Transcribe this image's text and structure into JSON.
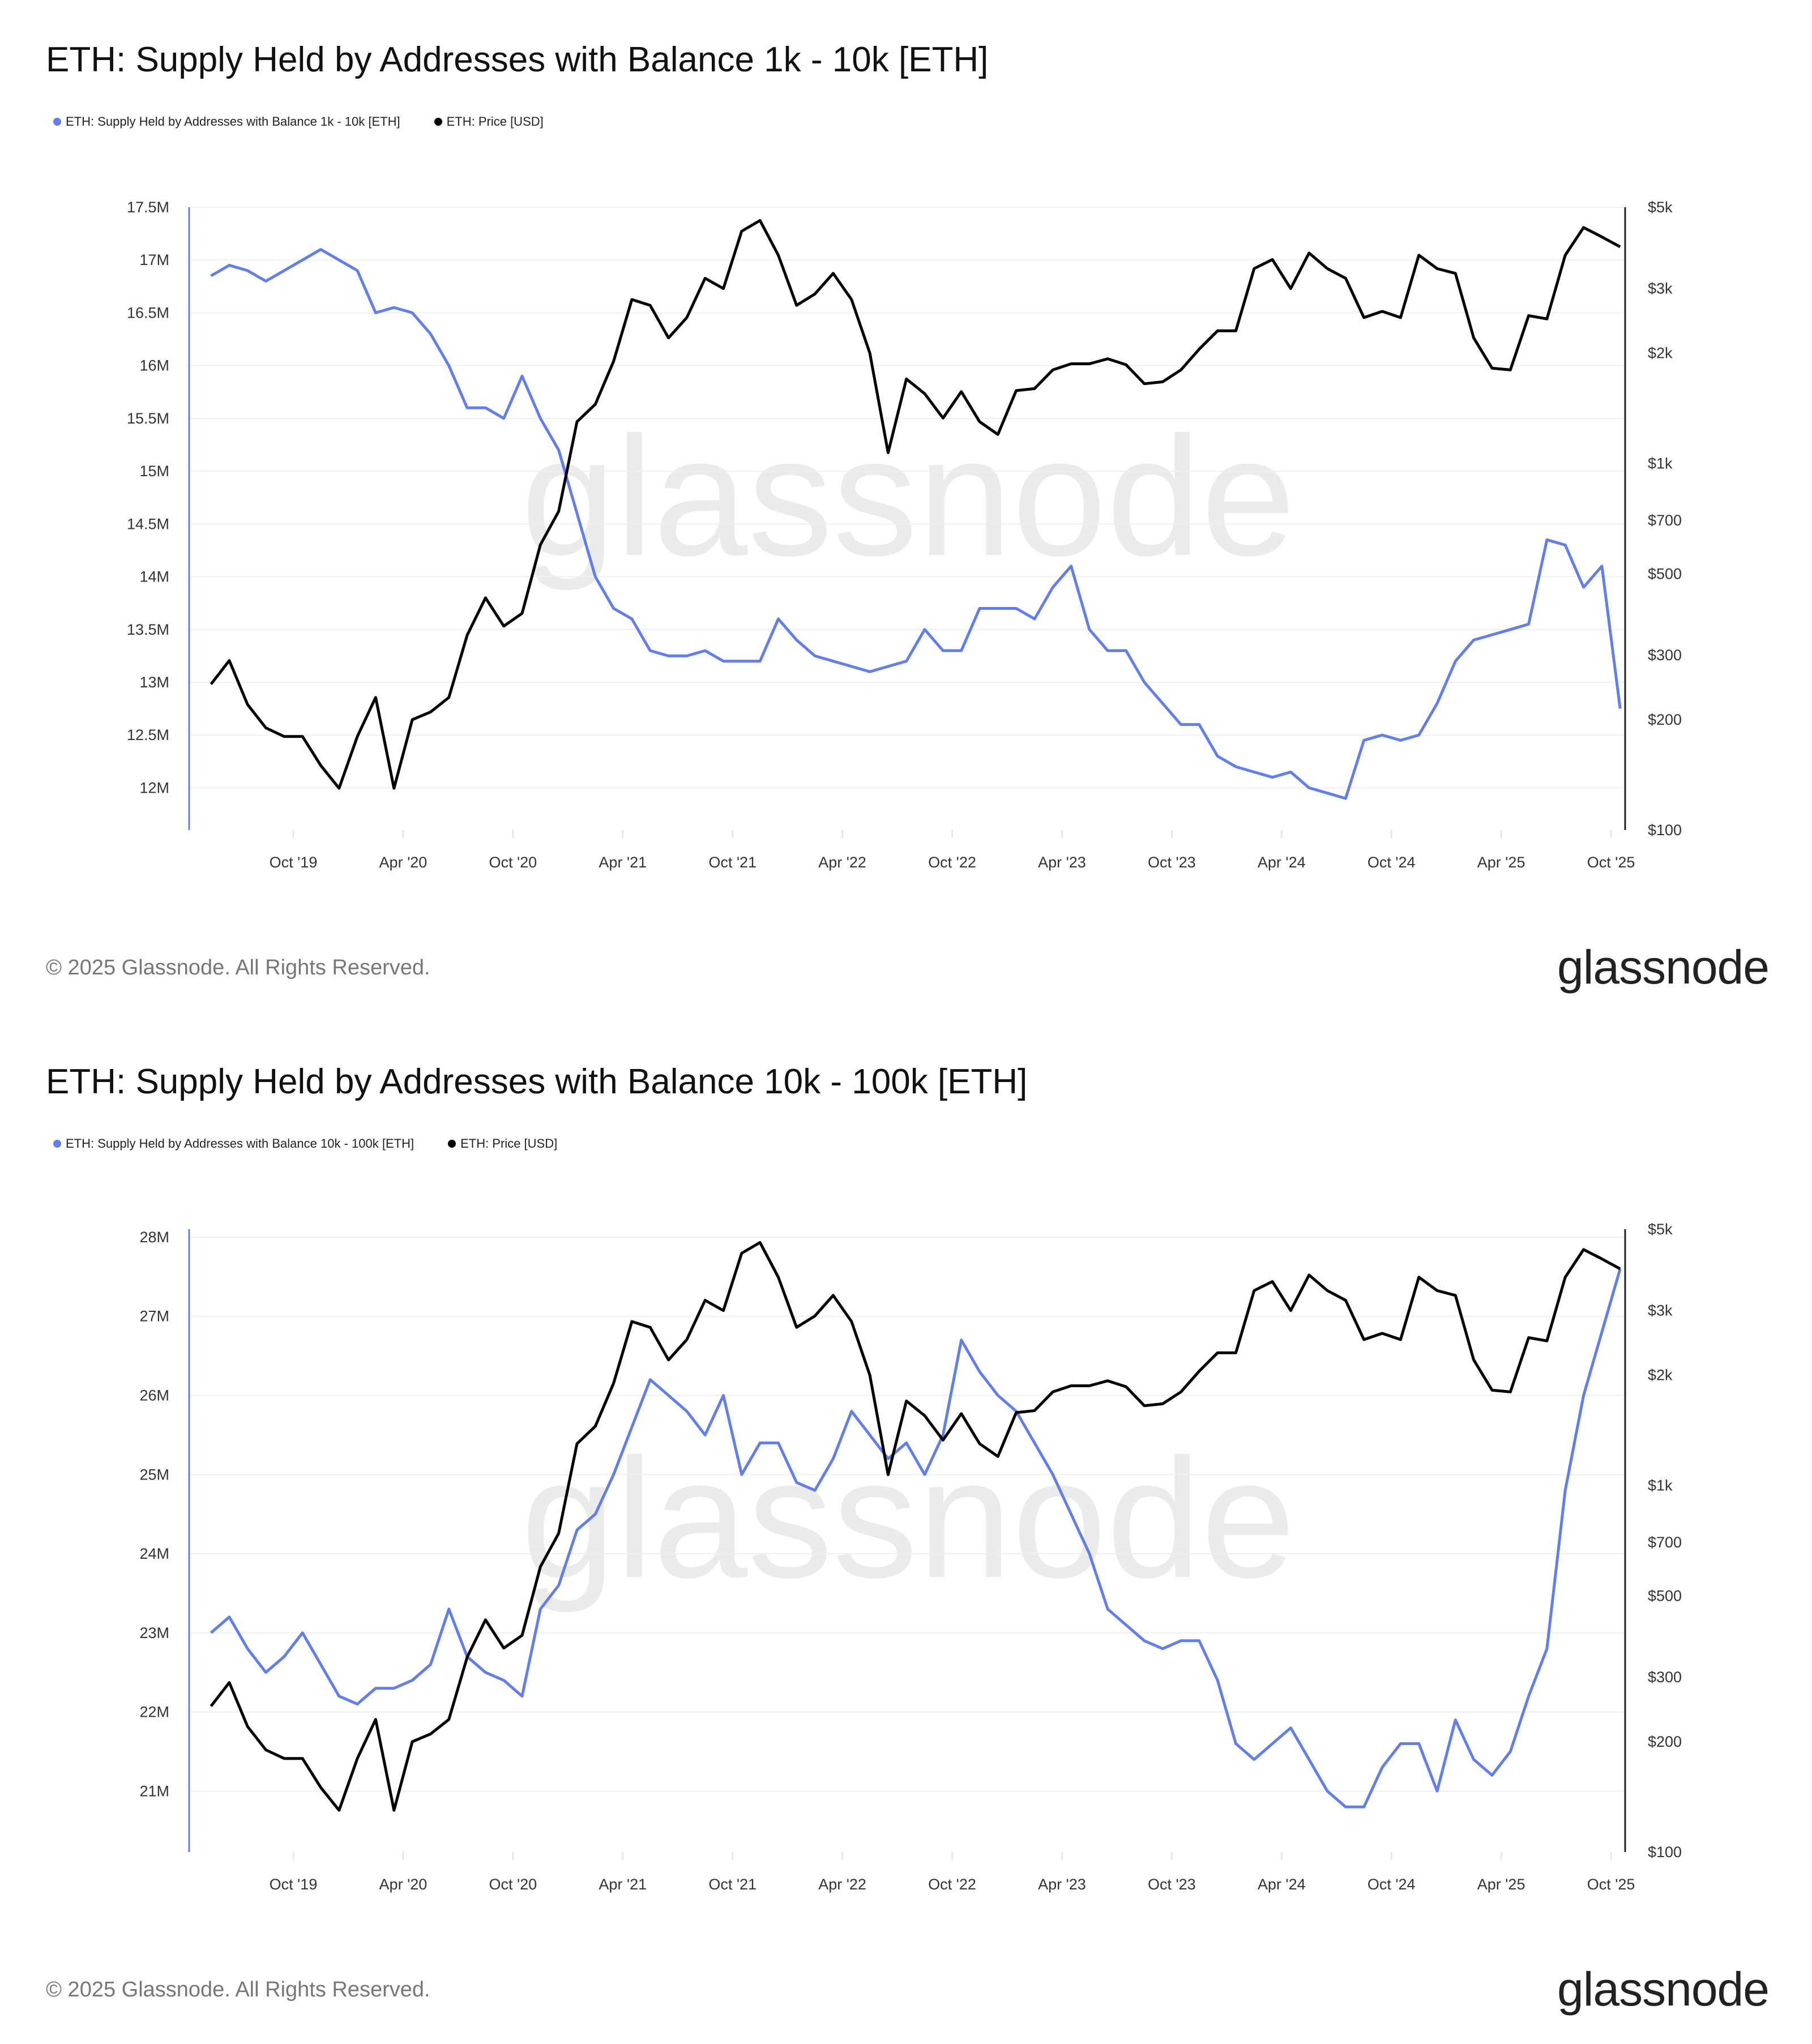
{
  "charts": [
    {
      "title": "ETH: Supply Held by Addresses with Balance 1k - 10k [ETH]",
      "legend": [
        {
          "label": "ETH: Supply Held by Addresses with Balance 1k - 10k [ETH]",
          "color": "#627EEA"
        },
        {
          "label": "ETH: Price [USD]",
          "color": "#000000"
        }
      ],
      "watermark": "glassnode",
      "footer": "© 2025 Glassnode. All Rights Reserved.",
      "logo": "glassnode"
    },
    {
      "title": "ETH: Supply Held by Addresses with Balance 10k - 100k [ETH]",
      "legend": [
        {
          "label": "ETH: Supply Held by Addresses with Balance 10k - 100k [ETH]",
          "color": "#627EEA"
        },
        {
          "label": "ETH: Price [USD]",
          "color": "#000000"
        }
      ],
      "watermark": "glassnode",
      "footer": "© 2025 Glassnode. All Rights Reserved.",
      "logo": "glassnode"
    }
  ],
  "chart_data": [
    {
      "type": "line",
      "title": "ETH: Supply Held by Addresses with Balance 1k - 10k [ETH]",
      "grid": true,
      "legend": "top-left",
      "x": [
        "2019-05",
        "2019-06",
        "2019-07",
        "2019-08",
        "2019-09",
        "2019-10",
        "2019-11",
        "2019-12",
        "2020-01",
        "2020-02",
        "2020-03",
        "2020-04",
        "2020-05",
        "2020-06",
        "2020-07",
        "2020-08",
        "2020-09",
        "2020-10",
        "2020-11",
        "2020-12",
        "2021-01",
        "2021-02",
        "2021-03",
        "2021-04",
        "2021-05",
        "2021-06",
        "2021-07",
        "2021-08",
        "2021-09",
        "2021-10",
        "2021-11",
        "2021-12",
        "2022-01",
        "2022-02",
        "2022-03",
        "2022-04",
        "2022-05",
        "2022-06",
        "2022-07",
        "2022-08",
        "2022-09",
        "2022-10",
        "2022-11",
        "2022-12",
        "2023-01",
        "2023-02",
        "2023-03",
        "2023-04",
        "2023-05",
        "2023-06",
        "2023-07",
        "2023-08",
        "2023-09",
        "2023-10",
        "2023-11",
        "2023-12",
        "2024-01",
        "2024-02",
        "2024-03",
        "2024-04",
        "2024-05",
        "2024-06",
        "2024-07",
        "2024-08",
        "2024-09",
        "2024-10",
        "2024-11",
        "2024-12",
        "2025-01",
        "2025-02",
        "2025-03",
        "2025-04",
        "2025-05",
        "2025-06",
        "2025-07",
        "2025-08",
        "2025-09",
        "2025-10"
      ],
      "x_ticks": [
        {
          "label": "Oct '19",
          "date": "2019-10"
        },
        {
          "label": "Apr '20",
          "date": "2020-04"
        },
        {
          "label": "Oct '20",
          "date": "2020-10"
        },
        {
          "label": "Apr '21",
          "date": "2021-04"
        },
        {
          "label": "Oct '21",
          "date": "2021-10"
        },
        {
          "label": "Apr '22",
          "date": "2022-04"
        },
        {
          "label": "Oct '22",
          "date": "2022-10"
        },
        {
          "label": "Apr '23",
          "date": "2023-04"
        },
        {
          "label": "Oct '23",
          "date": "2023-10"
        },
        {
          "label": "Apr '24",
          "date": "2024-04"
        },
        {
          "label": "Oct '24",
          "date": "2024-10"
        },
        {
          "label": "Apr '25",
          "date": "2025-04"
        },
        {
          "label": "Oct '25",
          "date": "2025-10"
        }
      ],
      "left_axis": {
        "scale": "linear",
        "ylim": [
          11.6,
          17.5
        ],
        "ticks": [
          {
            "label": "17.5M",
            "value": 17.5
          },
          {
            "label": "17M",
            "value": 17
          },
          {
            "label": "16.5M",
            "value": 16.5
          },
          {
            "label": "16M",
            "value": 16
          },
          {
            "label": "15.5M",
            "value": 15.5
          },
          {
            "label": "15M",
            "value": 15
          },
          {
            "label": "14.5M",
            "value": 14.5
          },
          {
            "label": "14M",
            "value": 14
          },
          {
            "label": "13.5M",
            "value": 13.5
          },
          {
            "label": "13M",
            "value": 13
          },
          {
            "label": "12.5M",
            "value": 12.5
          },
          {
            "label": "12M",
            "value": 12
          }
        ]
      },
      "right_axis": {
        "scale": "log",
        "ylim": [
          100,
          5000
        ],
        "ticks": [
          {
            "label": "$5k",
            "value": 5000
          },
          {
            "label": "$3k",
            "value": 3000
          },
          {
            "label": "$2k",
            "value": 2000
          },
          {
            "label": "$1k",
            "value": 1000
          },
          {
            "label": "$700",
            "value": 700
          },
          {
            "label": "$500",
            "value": 500
          },
          {
            "label": "$300",
            "value": 300
          },
          {
            "label": "$200",
            "value": 200
          },
          {
            "label": "$100",
            "value": 100
          }
        ]
      },
      "series": [
        {
          "name": "ETH: Supply Held by Addresses with Balance 1k - 10k [ETH]",
          "axis": "left",
          "color": "#627EEA",
          "unit": "M ETH",
          "values": [
            16.85,
            16.95,
            16.9,
            16.8,
            16.9,
            17.0,
            17.1,
            17.0,
            16.9,
            16.5,
            16.55,
            16.5,
            16.3,
            16.0,
            15.6,
            15.6,
            15.5,
            15.9,
            15.5,
            15.2,
            14.6,
            14.0,
            13.7,
            13.6,
            13.3,
            13.25,
            13.25,
            13.3,
            13.2,
            13.2,
            13.2,
            13.6,
            13.4,
            13.25,
            13.2,
            13.15,
            13.1,
            13.15,
            13.2,
            13.5,
            13.3,
            13.3,
            13.7,
            13.7,
            13.7,
            13.6,
            13.9,
            14.1,
            13.5,
            13.3,
            13.3,
            13.0,
            12.8,
            12.6,
            12.6,
            12.3,
            12.2,
            12.15,
            12.1,
            12.15,
            12.0,
            11.95,
            11.9,
            12.45,
            12.5,
            12.45,
            12.5,
            12.8,
            13.2,
            13.4,
            13.45,
            13.5,
            13.55,
            14.35,
            14.3,
            13.9,
            14.1,
            12.75
          ]
        },
        {
          "name": "ETH: Price [USD]",
          "axis": "right",
          "color": "#000000",
          "unit": "USD",
          "values": [
            250,
            290,
            220,
            190,
            180,
            180,
            150,
            130,
            180,
            230,
            130,
            200,
            210,
            230,
            340,
            430,
            360,
            390,
            600,
            740,
            1300,
            1450,
            1900,
            2800,
            2700,
            2200,
            2500,
            3200,
            3000,
            4300,
            4600,
            3700,
            2700,
            2900,
            3300,
            2800,
            2000,
            1070,
            1700,
            1550,
            1330,
            1570,
            1300,
            1200,
            1580,
            1600,
            1800,
            1870,
            1870,
            1930,
            1860,
            1650,
            1670,
            1800,
            2050,
            2300,
            2300,
            3400,
            3600,
            3000,
            3750,
            3400,
            3200,
            2500,
            2600,
            2500,
            3700,
            3400,
            3300,
            2200,
            1820,
            1800,
            2530,
            2480,
            3700,
            4400,
            4150,
            3900
          ]
        }
      ]
    },
    {
      "type": "line",
      "title": "ETH: Supply Held by Addresses with Balance 10k - 100k [ETH]",
      "grid": true,
      "legend": "top-left",
      "x": [
        "2019-05",
        "2019-06",
        "2019-07",
        "2019-08",
        "2019-09",
        "2019-10",
        "2019-11",
        "2019-12",
        "2020-01",
        "2020-02",
        "2020-03",
        "2020-04",
        "2020-05",
        "2020-06",
        "2020-07",
        "2020-08",
        "2020-09",
        "2020-10",
        "2020-11",
        "2020-12",
        "2021-01",
        "2021-02",
        "2021-03",
        "2021-04",
        "2021-05",
        "2021-06",
        "2021-07",
        "2021-08",
        "2021-09",
        "2021-10",
        "2021-11",
        "2021-12",
        "2022-01",
        "2022-02",
        "2022-03",
        "2022-04",
        "2022-05",
        "2022-06",
        "2022-07",
        "2022-08",
        "2022-09",
        "2022-10",
        "2022-11",
        "2022-12",
        "2023-01",
        "2023-02",
        "2023-03",
        "2023-04",
        "2023-05",
        "2023-06",
        "2023-07",
        "2023-08",
        "2023-09",
        "2023-10",
        "2023-11",
        "2023-12",
        "2024-01",
        "2024-02",
        "2024-03",
        "2024-04",
        "2024-05",
        "2024-06",
        "2024-07",
        "2024-08",
        "2024-09",
        "2024-10",
        "2024-11",
        "2024-12",
        "2025-01",
        "2025-02",
        "2025-03",
        "2025-04",
        "2025-05",
        "2025-06",
        "2025-07",
        "2025-08",
        "2025-09",
        "2025-10"
      ],
      "x_ticks": [
        {
          "label": "Oct '19",
          "date": "2019-10"
        },
        {
          "label": "Apr '20",
          "date": "2020-04"
        },
        {
          "label": "Oct '20",
          "date": "2020-10"
        },
        {
          "label": "Apr '21",
          "date": "2021-04"
        },
        {
          "label": "Oct '21",
          "date": "2021-10"
        },
        {
          "label": "Apr '22",
          "date": "2022-04"
        },
        {
          "label": "Oct '22",
          "date": "2022-10"
        },
        {
          "label": "Apr '23",
          "date": "2023-04"
        },
        {
          "label": "Oct '23",
          "date": "2023-10"
        },
        {
          "label": "Apr '24",
          "date": "2024-04"
        },
        {
          "label": "Oct '24",
          "date": "2024-10"
        },
        {
          "label": "Apr '25",
          "date": "2025-04"
        },
        {
          "label": "Oct '25",
          "date": "2025-10"
        }
      ],
      "left_axis": {
        "scale": "linear",
        "ylim": [
          20.23,
          28.1
        ],
        "ticks": [
          {
            "label": "28M",
            "value": 28
          },
          {
            "label": "27M",
            "value": 27
          },
          {
            "label": "26M",
            "value": 26
          },
          {
            "label": "25M",
            "value": 25
          },
          {
            "label": "24M",
            "value": 24
          },
          {
            "label": "23M",
            "value": 23
          },
          {
            "label": "22M",
            "value": 22
          },
          {
            "label": "21M",
            "value": 21
          }
        ]
      },
      "right_axis": {
        "scale": "log",
        "ylim": [
          100,
          5000
        ],
        "ticks": [
          {
            "label": "$5k",
            "value": 5000
          },
          {
            "label": "$3k",
            "value": 3000
          },
          {
            "label": "$2k",
            "value": 2000
          },
          {
            "label": "$1k",
            "value": 1000
          },
          {
            "label": "$700",
            "value": 700
          },
          {
            "label": "$500",
            "value": 500
          },
          {
            "label": "$300",
            "value": 300
          },
          {
            "label": "$200",
            "value": 200
          },
          {
            "label": "$100",
            "value": 100
          }
        ]
      },
      "series": [
        {
          "name": "ETH: Supply Held by Addresses with Balance 10k - 100k [ETH]",
          "axis": "left",
          "color": "#627EEA",
          "unit": "M ETH",
          "values": [
            23.0,
            23.2,
            22.8,
            22.5,
            22.7,
            23.0,
            22.6,
            22.2,
            22.1,
            22.3,
            22.3,
            22.4,
            22.6,
            23.3,
            22.7,
            22.5,
            22.4,
            22.2,
            23.3,
            23.6,
            24.3,
            24.5,
            25.0,
            25.6,
            26.2,
            26.0,
            25.8,
            25.5,
            26.0,
            25.0,
            25.4,
            25.4,
            24.9,
            24.8,
            25.2,
            25.8,
            25.5,
            25.2,
            25.4,
            25.0,
            25.5,
            26.7,
            26.3,
            26.0,
            25.8,
            25.4,
            25.0,
            24.5,
            24.0,
            23.3,
            23.1,
            22.9,
            22.8,
            22.9,
            22.9,
            22.4,
            21.6,
            21.4,
            21.6,
            21.8,
            21.4,
            21.0,
            20.8,
            20.8,
            21.3,
            21.6,
            21.6,
            21.0,
            21.9,
            21.4,
            21.2,
            21.5,
            22.2,
            22.8,
            24.8,
            26.0,
            26.8,
            27.6
          ]
        },
        {
          "name": "ETH: Price [USD]",
          "axis": "right",
          "color": "#000000",
          "unit": "USD",
          "values": [
            250,
            290,
            220,
            190,
            180,
            180,
            150,
            130,
            180,
            230,
            130,
            200,
            210,
            230,
            340,
            430,
            360,
            390,
            600,
            740,
            1300,
            1450,
            1900,
            2800,
            2700,
            2200,
            2500,
            3200,
            3000,
            4300,
            4600,
            3700,
            2700,
            2900,
            3300,
            2800,
            2000,
            1070,
            1700,
            1550,
            1330,
            1570,
            1300,
            1200,
            1580,
            1600,
            1800,
            1870,
            1870,
            1930,
            1860,
            1650,
            1670,
            1800,
            2050,
            2300,
            2300,
            3400,
            3600,
            3000,
            3750,
            3400,
            3200,
            2500,
            2600,
            2500,
            3700,
            3400,
            3300,
            2200,
            1820,
            1800,
            2530,
            2480,
            3700,
            4400,
            4150,
            3900
          ]
        }
      ]
    }
  ]
}
